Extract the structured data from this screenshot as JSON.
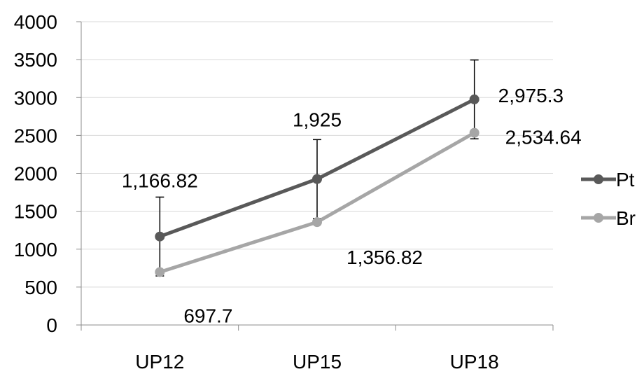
{
  "chart_data": {
    "type": "line",
    "categories": [
      "UP12",
      "UP15",
      "UP18"
    ],
    "ylim": [
      0,
      4000
    ],
    "yticks": [
      "0",
      "500",
      "1000",
      "1500",
      "2000",
      "2500",
      "3000",
      "3500",
      "4000"
    ],
    "grid": true,
    "legend_position": "right",
    "series": [
      {
        "name": "Pt",
        "color": "#595959",
        "values": [
          1166.82,
          1925,
          2975.3
        ],
        "error": [
          520,
          520,
          520
        ],
        "labels": [
          "1,166.82",
          "1,925",
          "2,975.3"
        ]
      },
      {
        "name": "Br",
        "color": "#a6a6a6",
        "values": [
          697.7,
          1356.82,
          2534.64
        ],
        "error": [
          0,
          0,
          0
        ],
        "labels": [
          "697.7",
          "1,356.82",
          "2,534.64"
        ]
      }
    ]
  }
}
